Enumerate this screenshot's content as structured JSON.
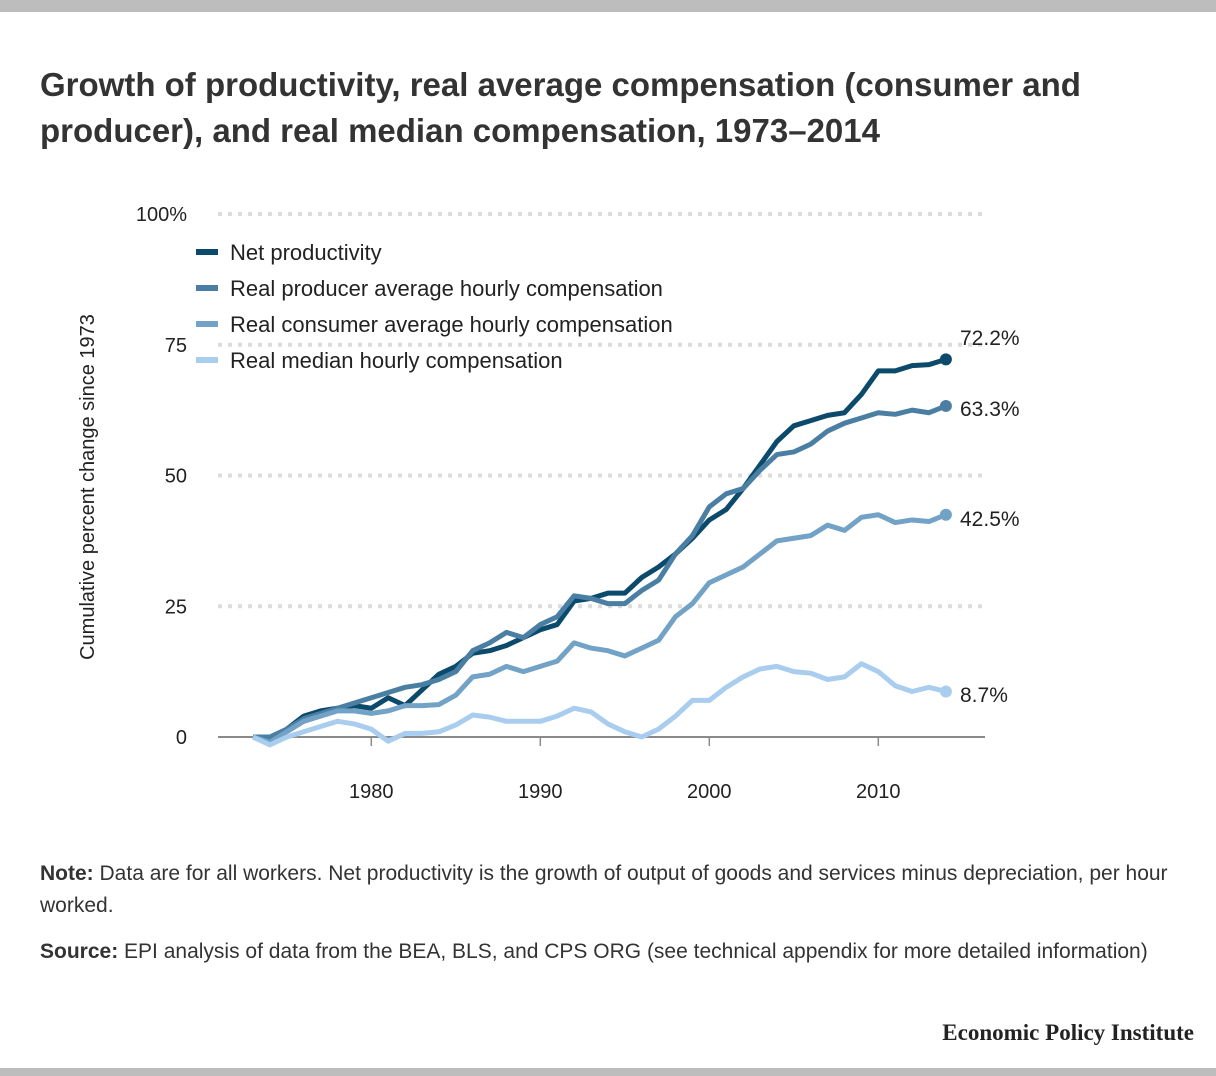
{
  "title": "Growth of productivity, real average compensation (consumer and producer), and real median compensation, 1973–2014",
  "note_label": "Note:",
  "note_text": "Data are for all workers. Net productivity is the growth of output of goods and services minus depreciation, per hour worked.",
  "source_label": "Source:",
  "source_text": "EPI analysis of data from the BEA, BLS, and CPS ORG (see technical appendix for more detailed information)",
  "brand": "Economic Policy Institute",
  "chart_data": {
    "type": "line",
    "title": "Growth of productivity, real average compensation (consumer and producer), and real median compensation, 1973–2014",
    "ylabel": "Cumulative percent change since 1973",
    "xlabel": "",
    "xlim": [
      1973,
      2014
    ],
    "ylim": [
      0,
      100
    ],
    "xticks": [
      "1980",
      "1990",
      "2000",
      "2010"
    ],
    "xtick_values": [
      1980,
      1990,
      2000,
      2010
    ],
    "yticks": [
      "0",
      "25",
      "50",
      "75",
      "100%"
    ],
    "ytick_values": [
      0,
      25,
      50,
      75,
      100
    ],
    "grid": "horizontal dotted",
    "legend_position": "top-left",
    "x": [
      1973,
      1974,
      1975,
      1976,
      1977,
      1978,
      1979,
      1980,
      1981,
      1982,
      1983,
      1984,
      1985,
      1986,
      1987,
      1988,
      1989,
      1990,
      1991,
      1992,
      1993,
      1994,
      1995,
      1996,
      1997,
      1998,
      1999,
      2000,
      2001,
      2002,
      2003,
      2004,
      2005,
      2006,
      2007,
      2008,
      2009,
      2010,
      2011,
      2012,
      2013,
      2014
    ],
    "series": [
      {
        "name": "Net productivity",
        "color": "#0b4a6b",
        "end_label": "72.2%",
        "values": [
          0,
          -0.5,
          1.5,
          4,
          5,
          5.5,
          6,
          5.5,
          7.5,
          6,
          9,
          12,
          13.5,
          16,
          16.5,
          17.5,
          19,
          20.5,
          21.5,
          26,
          26.5,
          27.5,
          27.5,
          30.5,
          32.5,
          35,
          38,
          41.5,
          43.5,
          47.5,
          52,
          56.5,
          59.5,
          60.5,
          61.5,
          62,
          65.5,
          70,
          70,
          71,
          71.2,
          72.2
        ]
      },
      {
        "name": "Real producer average hourly compensation",
        "color": "#4a7fa3",
        "end_label": "63.3%",
        "values": [
          0,
          0,
          1.5,
          3.5,
          4.5,
          5.5,
          6.5,
          7.5,
          8.5,
          9.5,
          10,
          11,
          12.5,
          16.5,
          18,
          20,
          19,
          21.5,
          23,
          27,
          26.5,
          25.5,
          25.5,
          28,
          30,
          35,
          38.5,
          44,
          46.5,
          47.5,
          51,
          54,
          54.5,
          56,
          58.5,
          60,
          61,
          62,
          61.7,
          62.5,
          62,
          63.3
        ]
      },
      {
        "name": "Real consumer average hourly compensation",
        "color": "#72a2c6",
        "end_label": "42.5%",
        "values": [
          0,
          -1,
          1,
          3,
          4,
          5,
          5,
          4.5,
          5,
          6,
          6,
          6.2,
          8,
          11.5,
          12,
          13.5,
          12.5,
          13.5,
          14.5,
          18,
          17,
          16.5,
          15.5,
          17,
          18.5,
          23,
          25.5,
          29.5,
          31,
          32.5,
          35,
          37.5,
          38,
          38.5,
          40.5,
          39.5,
          42,
          42.5,
          41,
          41.5,
          41.2,
          42.5
        ]
      },
      {
        "name": "Real median hourly compensation",
        "color": "#a9cdee",
        "end_label": "8.7%",
        "values": [
          0,
          -1.5,
          0,
          1,
          2,
          3,
          2.5,
          1.5,
          -0.8,
          0.7,
          0.7,
          1,
          2.3,
          4.2,
          3.8,
          3,
          3,
          3,
          4,
          5.5,
          4.8,
          2.5,
          1,
          0,
          1.5,
          4,
          7,
          7,
          9.5,
          11.5,
          13,
          13.5,
          12.5,
          12.2,
          11,
          11.5,
          14,
          12.5,
          9.8,
          8.7,
          9.5,
          8.7
        ]
      }
    ]
  }
}
